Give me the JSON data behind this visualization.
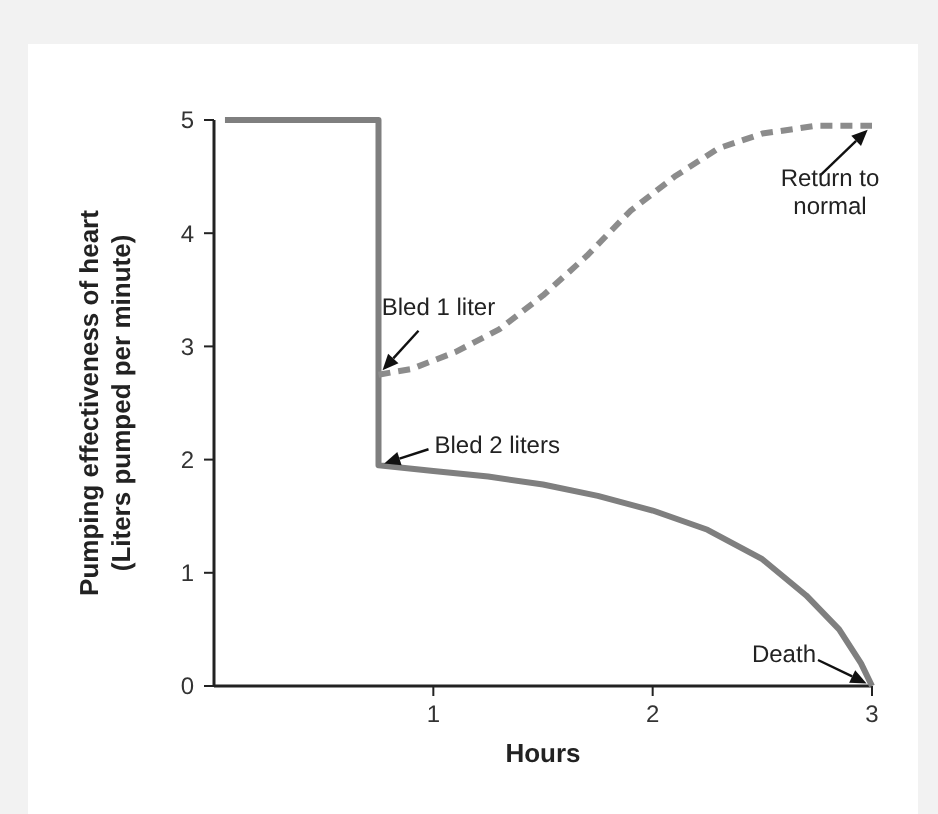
{
  "chart_data": {
    "type": "line",
    "xlabel": "Hours",
    "ylabel": "Pumping effectiveness of heart\n(Liters pumped per minute)",
    "xlim": [
      0,
      3
    ],
    "xticks": [
      1,
      2,
      3
    ],
    "ylim": [
      0,
      5
    ],
    "yticks": [
      0,
      1,
      2,
      3,
      4,
      5
    ],
    "grid": false,
    "series": [
      {
        "color": "#7f7f7f",
        "line_style": "solid",
        "x": [
          0.05,
          0.75,
          0.75,
          1.0,
          1.25,
          1.5,
          1.75,
          2.0,
          2.25,
          2.5,
          2.7,
          2.85,
          2.95,
          3.0
        ],
        "values": [
          5,
          5,
          1.95,
          1.9,
          1.85,
          1.78,
          1.68,
          1.55,
          1.38,
          1.12,
          0.8,
          0.5,
          0.2,
          0
        ]
      },
      {
        "color": "#8c8c8c",
        "line_style": "dashed",
        "x": [
          0.75,
          0.9,
          1.1,
          1.3,
          1.5,
          1.7,
          1.9,
          2.1,
          2.3,
          2.5,
          2.75,
          3.0
        ],
        "values": [
          2.75,
          2.8,
          2.95,
          3.15,
          3.45,
          3.8,
          4.2,
          4.5,
          4.75,
          4.88,
          4.95,
          4.95
        ]
      }
    ],
    "annotations": [
      "Bled 1 liter",
      "Bled 2 liters",
      "Return to\nnormal",
      "Death"
    ]
  }
}
